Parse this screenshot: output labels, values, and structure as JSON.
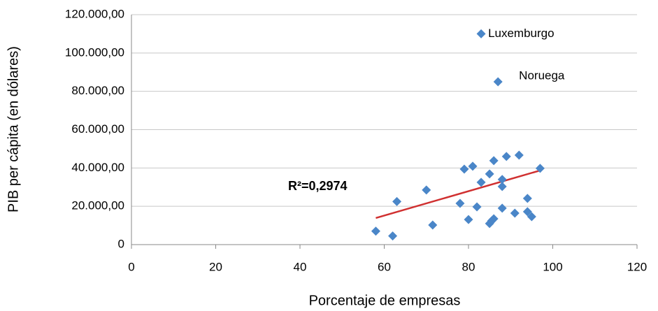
{
  "chart_data": {
    "type": "scatter",
    "x_label": "Porcentaje de empresas",
    "y_label": "PIB per cápita (en dólares)",
    "color": "#4a86c8",
    "x": [
      58,
      62,
      63,
      70,
      71.5,
      78,
      79,
      80,
      81,
      82,
      83,
      83,
      85,
      85,
      85.5,
      86,
      86,
      87,
      88,
      88,
      88,
      89,
      91,
      92,
      94,
      94,
      95,
      97
    ],
    "values": [
      7000,
      4500,
      22500,
      28500,
      10200,
      21500,
      39400,
      13100,
      40900,
      19700,
      32500,
      110000,
      36900,
      11000,
      12400,
      13500,
      43800,
      85000,
      34000,
      30300,
      19000,
      46000,
      16400,
      46700,
      24100,
      17200,
      14600,
      39800
    ],
    "point_labels": [
      null,
      null,
      null,
      null,
      null,
      null,
      null,
      null,
      null,
      null,
      null,
      "Luxemburgo",
      null,
      null,
      null,
      null,
      null,
      "Noruega",
      null,
      null,
      null,
      null,
      null,
      null,
      null,
      null,
      null,
      null
    ],
    "trendline": {
      "x": [
        58,
        97
      ],
      "values": [
        13900,
        38700
      ],
      "color": "#d03030"
    },
    "annotation": "R²=0,2974",
    "xlim": [
      0,
      120
    ],
    "xticks": [
      0,
      20,
      40,
      60,
      80,
      100,
      120
    ],
    "ylim": [
      0,
      120000
    ],
    "yticks": [
      0,
      {
        "value": 20000,
        "label": "20.000,00"
      },
      {
        "value": 40000,
        "label": "40.000,00"
      },
      {
        "value": 60000,
        "label": "60.000,00"
      },
      {
        "value": 80000,
        "label": "80.000,00"
      },
      {
        "value": 100000,
        "label": "100.000,00"
      },
      {
        "value": 120000,
        "label": "120.000,00"
      }
    ],
    "grid": true
  }
}
